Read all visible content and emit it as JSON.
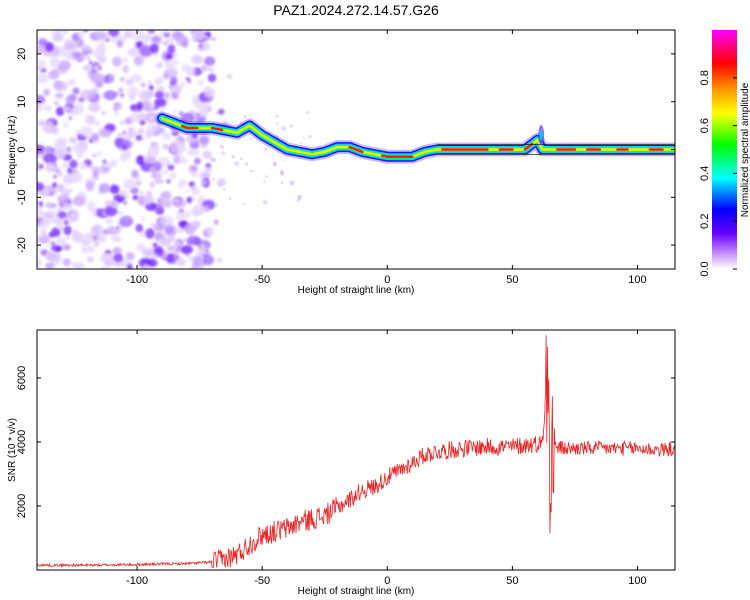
{
  "figure": {
    "title": "PAZ1.2024.272.14.57.G26"
  },
  "chart_data": [
    {
      "type": "heatmap",
      "xlabel": "Height of straight line (km)",
      "ylabel": "Frequency (Hz)",
      "xlim": [
        -140,
        115
      ],
      "ylim": [
        -25,
        25
      ],
      "xticks": [
        -100,
        -50,
        0,
        50,
        100
      ],
      "yticks": [
        -20,
        -10,
        0,
        10,
        20
      ],
      "colorbar": {
        "label": "Normalized spectral amplitude",
        "range": [
          0,
          1
        ],
        "ticks": [
          0.0,
          0.2,
          0.4,
          0.6,
          0.8
        ],
        "tick_labels": [
          "0.0",
          "0.2",
          "0.4",
          "0.6",
          "0.8"
        ],
        "colormap": [
          "#ffffff",
          "#cc99ff",
          "#6600ff",
          "#0000ff",
          "#00ffff",
          "#00ff00",
          "#ffff00",
          "#ff9900",
          "#ff0000",
          "#ff00ff"
        ]
      },
      "ridge": {
        "x": [
          -90,
          -85,
          -80,
          -75,
          -70,
          -65,
          -60,
          -55,
          -50,
          -45,
          -40,
          -35,
          -30,
          -25,
          -20,
          -15,
          -10,
          -5,
          0,
          5,
          10,
          15,
          20,
          25,
          30,
          40,
          50,
          55,
          60,
          62,
          65,
          70,
          80,
          90,
          100,
          110,
          115
        ],
        "y": [
          6.5,
          5.5,
          4.5,
          4.5,
          4.5,
          4.0,
          3.5,
          5.0,
          3.0,
          1.5,
          0.0,
          -0.5,
          -1.0,
          -0.5,
          0.5,
          0.5,
          -0.5,
          -1.0,
          -1.5,
          -1.5,
          -1.5,
          -0.5,
          0.0,
          0.0,
          0.0,
          0.0,
          0.0,
          0.0,
          2.0,
          0.0,
          0.0,
          0.0,
          0.0,
          0.0,
          0.0,
          0.0,
          0.0
        ],
        "note": ""
      },
      "noise_region_x": [
        -140,
        -70
      ]
    },
    {
      "type": "line",
      "xlabel": "Height of straight line (km)",
      "ylabel": "SNR (10 * v/v)",
      "xlim": [
        -140,
        115
      ],
      "ylim": [
        0,
        7500
      ],
      "xticks": [
        -100,
        -50,
        0,
        50,
        100
      ],
      "yticks": [
        2000,
        4000,
        6000
      ],
      "color": "#ee2222",
      "series": [
        {
          "x": [
            -140,
            -120,
            -100,
            -90,
            -80,
            -70,
            -65,
            -60,
            -55,
            -50,
            -45,
            -40,
            -35,
            -30,
            -25,
            -20,
            -15,
            -10,
            -5,
            0,
            5,
            10,
            15,
            20,
            25,
            30,
            40,
            50,
            55,
            60,
            62,
            64,
            65,
            66,
            68,
            70,
            80,
            90,
            100,
            110,
            115
          ],
          "y": [
            150,
            150,
            170,
            190,
            200,
            250,
            330,
            480,
            800,
            1100,
            1200,
            1300,
            1500,
            1600,
            1700,
            1950,
            2200,
            2500,
            2600,
            2900,
            3100,
            3350,
            3600,
            3700,
            3750,
            3800,
            3850,
            3850,
            3900,
            3950,
            4000,
            6000,
            3900,
            3800,
            3850,
            3800,
            3800,
            3800,
            3800,
            3750,
            3800
          ]
        }
      ]
    }
  ]
}
